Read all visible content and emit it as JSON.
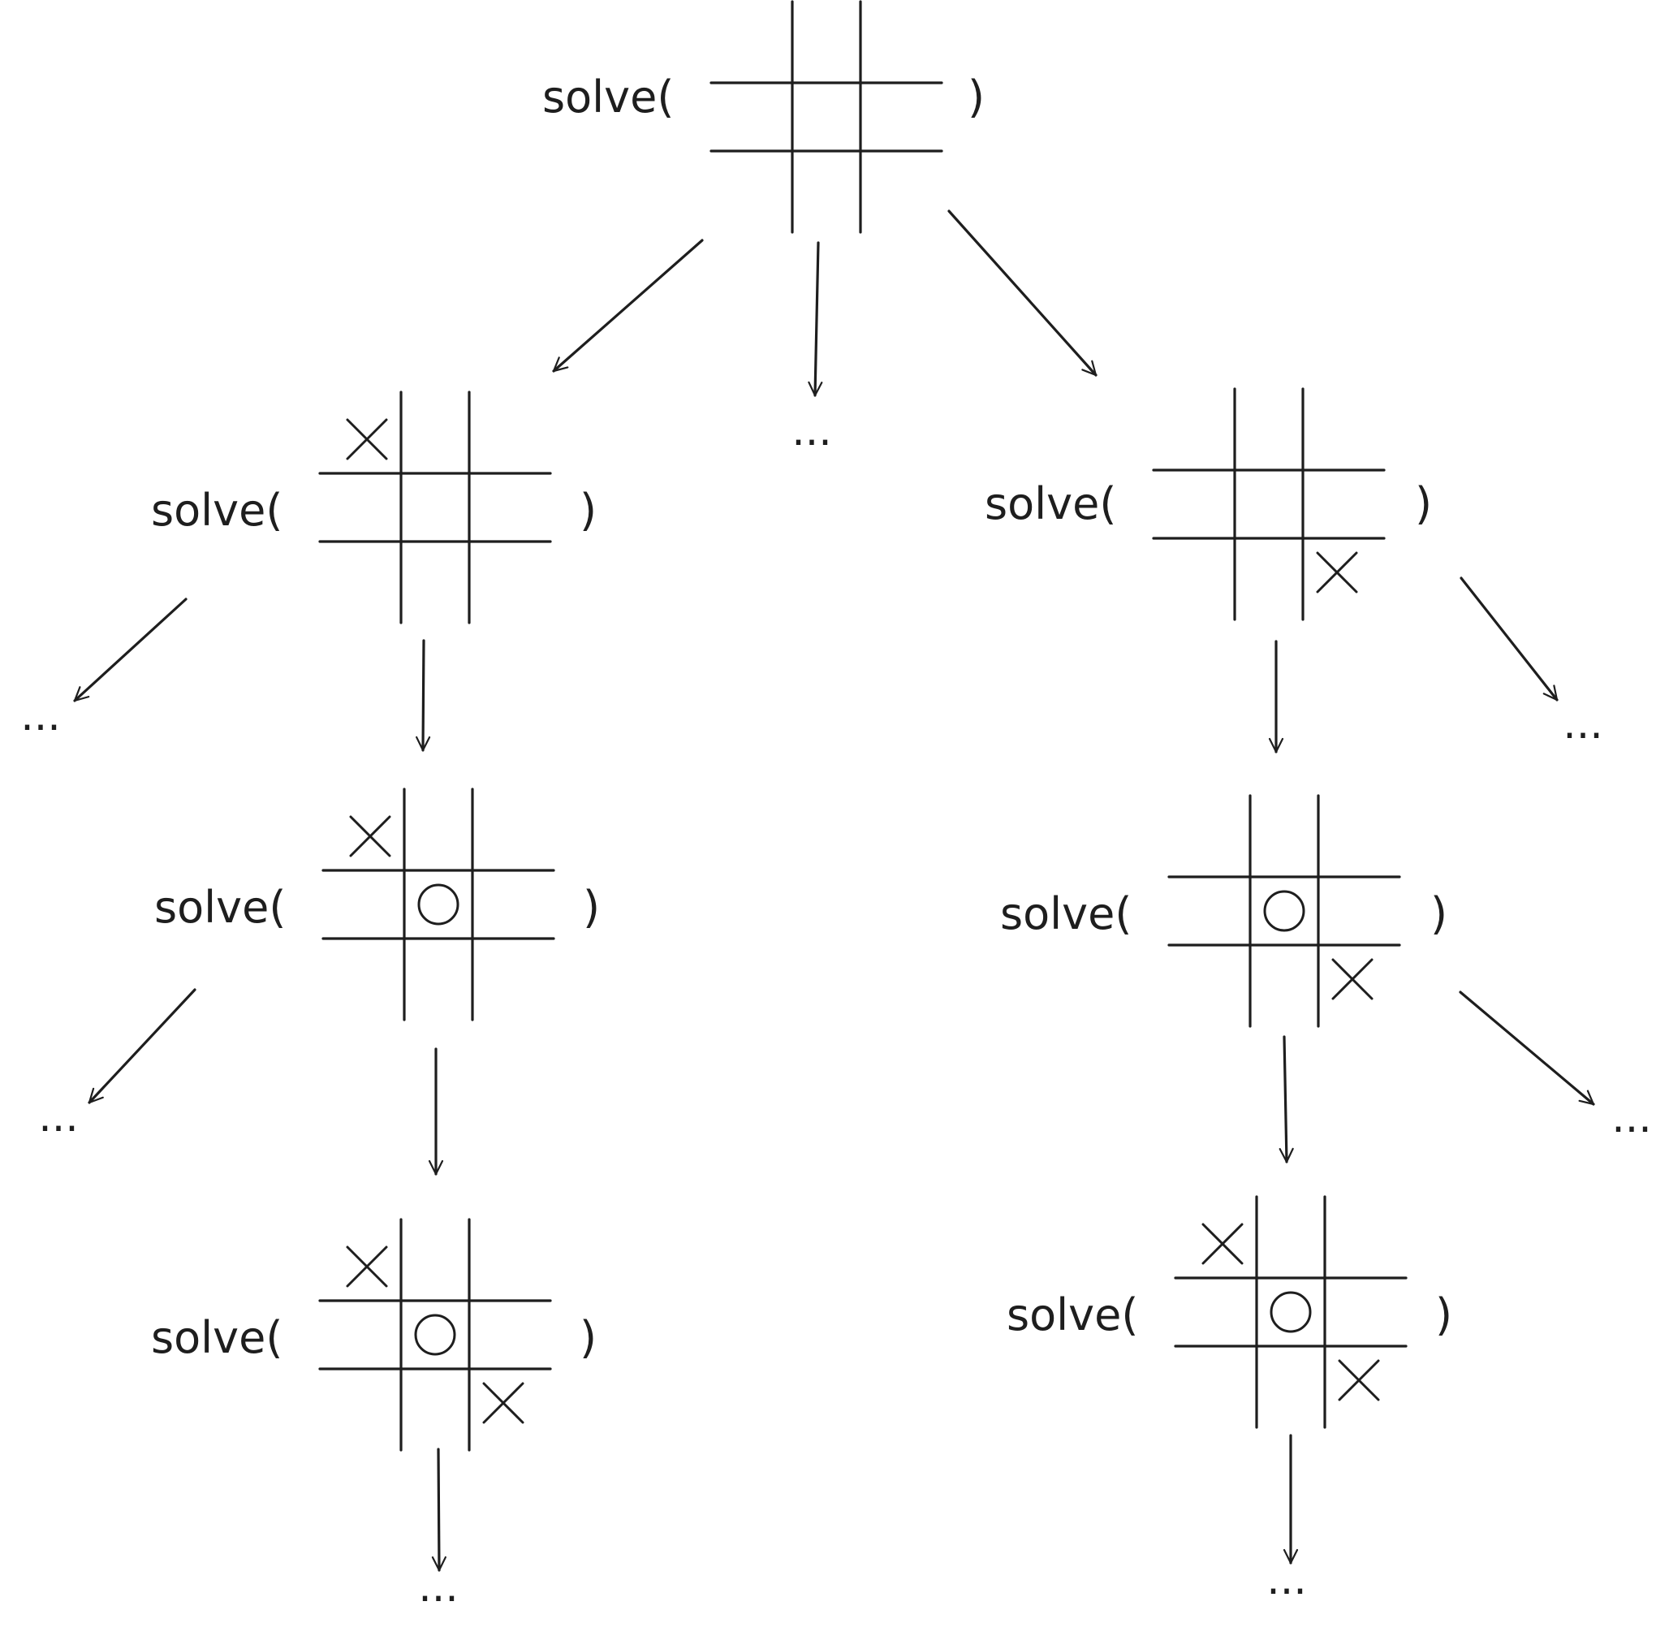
{
  "labels": {
    "call_open": "solve(",
    "call_close": ")",
    "ellipsis": "..."
  },
  "boards": [
    {
      "id": "root",
      "cells": [
        "",
        "",
        "",
        "",
        "",
        "",
        "",
        "",
        ""
      ]
    },
    {
      "id": "left-1",
      "cells": [
        "X",
        "",
        "",
        "",
        "",
        "",
        "",
        "",
        ""
      ]
    },
    {
      "id": "right-1",
      "cells": [
        "",
        "",
        "",
        "",
        "",
        "",
        "",
        "",
        "X"
      ]
    },
    {
      "id": "left-2",
      "cells": [
        "X",
        "",
        "",
        "",
        "O",
        "",
        "",
        "",
        ""
      ]
    },
    {
      "id": "right-2",
      "cells": [
        "",
        "",
        "",
        "",
        "O",
        "",
        "",
        "",
        "X"
      ]
    },
    {
      "id": "left-3",
      "cells": [
        "X",
        "",
        "",
        "",
        "O",
        "",
        "",
        "",
        "X"
      ]
    },
    {
      "id": "right-3",
      "cells": [
        "X",
        "",
        "",
        "",
        "O",
        "",
        "",
        "",
        "X"
      ]
    }
  ],
  "colors": {
    "ink": "#1e1e1e",
    "background": "#ffffff"
  }
}
